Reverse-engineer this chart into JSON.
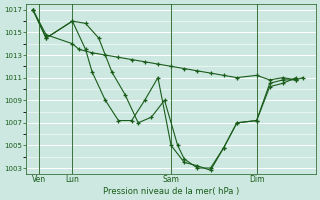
{
  "xlabel": "Pression niveau de la mer( hPa )",
  "bg_color": "#cce8e0",
  "grid_color": "#ffffff",
  "line_color": "#1a5c1a",
  "ylim": [
    1002.5,
    1017.5
  ],
  "yticks": [
    1003,
    1005,
    1007,
    1009,
    1011,
    1013,
    1015,
    1017
  ],
  "xlim": [
    0,
    22
  ],
  "xtick_positions": [
    1,
    3.5,
    11,
    17.5
  ],
  "xtick_labels": [
    "Ven",
    "Lun",
    "Sam",
    "Dim"
  ],
  "vlines": [
    1,
    3.5,
    11,
    17.5
  ],
  "series1_x": [
    0.5,
    1.5,
    3.5,
    4.0,
    5.0,
    6.0,
    7.0,
    8.0,
    9.0,
    10.0,
    11.0,
    12.0,
    13.0,
    14.0,
    15.0,
    16.0,
    17.5,
    18.5,
    19.5,
    20.5,
    21.0
  ],
  "series1_y": [
    1017,
    1014.8,
    1014.0,
    1013.5,
    1013.2,
    1013.0,
    1012.8,
    1012.6,
    1012.4,
    1012.2,
    1012.0,
    1011.8,
    1011.6,
    1011.4,
    1011.2,
    1011.0,
    1011.2,
    1010.8,
    1011.0,
    1010.8,
    1011.0
  ],
  "series2_x": [
    0.5,
    1.5,
    3.5,
    4.5,
    5.5,
    6.5,
    7.5,
    8.5,
    9.5,
    10.5,
    11.5,
    12.0,
    13.0,
    14.0,
    15.0,
    16.0,
    17.5,
    18.5,
    19.5,
    20.5
  ],
  "series2_y": [
    1017,
    1014.5,
    1016.0,
    1015.8,
    1014.5,
    1011.5,
    1009.5,
    1007.0,
    1007.5,
    1009.0,
    1005.0,
    1003.8,
    1003.0,
    1003.0,
    1004.8,
    1007.0,
    1007.2,
    1010.5,
    1010.8,
    1010.8
  ],
  "series3_x": [
    0.5,
    1.5,
    3.5,
    4.5,
    5.0,
    6.0,
    7.0,
    8.0,
    9.0,
    10.0,
    11.0,
    12.0,
    13.0,
    14.0,
    15.0,
    16.0,
    17.5,
    18.5,
    19.5,
    20.5
  ],
  "series3_y": [
    1017,
    1014.5,
    1016.0,
    1013.5,
    1011.5,
    1009.0,
    1007.2,
    1007.2,
    1009.0,
    1011.0,
    1005.0,
    1003.5,
    1003.2,
    1002.8,
    1004.8,
    1007.0,
    1007.2,
    1010.2,
    1010.5,
    1011.0
  ]
}
